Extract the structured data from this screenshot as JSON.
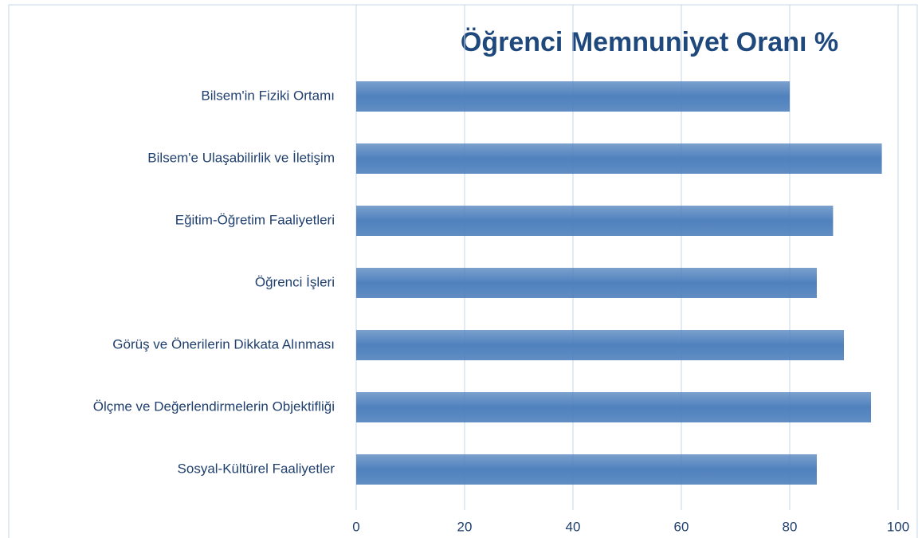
{
  "chart_data": {
    "type": "barh",
    "title": "Öğrenci Memnuniyet Oranı %",
    "categories": [
      "Bilsem'in Fiziki Ortamı",
      "Bilsem'e Ulaşabilirlik ve İletişim",
      "Eğitim-Öğretim Faaliyetleri",
      "Öğrenci İşleri",
      "Görüş ve Önerilerin Dikkata Alınması",
      "Ölçme ve Değerlendirmelerin Objektifliği",
      "Sosyal-Kültürel Faaliyetler"
    ],
    "values": [
      80,
      97,
      88,
      85,
      90,
      95,
      85
    ],
    "color": "#4f81bd",
    "xlim": [
      0,
      100
    ],
    "xticks": [
      0,
      20,
      40,
      60,
      80,
      100
    ],
    "grid": true
  }
}
